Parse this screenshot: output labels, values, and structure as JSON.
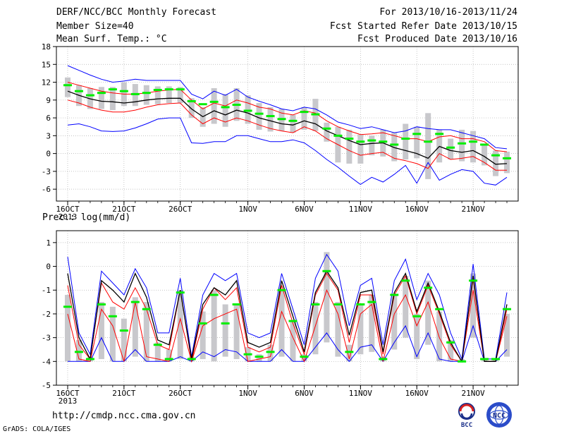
{
  "header": {
    "title": "DERF/NCC/BCC Monthly Forecast",
    "member_size": "Member Size=40",
    "variable": "Mean Surf. Temp.: °C",
    "for_period": "For 2013/10/16-2013/11/24",
    "fcst_started": "Fcst Started Refer Date 2013/10/15",
    "fcst_produced": "Fcst Produced Date 2013/10/16"
  },
  "footer": {
    "url": "http://cmdp.ncc.cma.gov.cn",
    "grads": "GrADS: COLA/IGES",
    "logo_bcc": "BCC",
    "logo_ncc": "NCC"
  },
  "colors": {
    "max_min": "#0000ff",
    "mean": "#000000",
    "std_band": "#ff0000",
    "spread_box": "#c8c8cc",
    "median": "#00ee00"
  },
  "chart_data": [
    {
      "type": "line",
      "title": "",
      "ylabel": "Mean Surf. Temp.: °C",
      "ylim": [
        -8,
        18
      ],
      "yticks": [
        -6,
        -3,
        0,
        3,
        6,
        9,
        12,
        15,
        18
      ],
      "x_tick_labels": [
        {
          "day": 1,
          "label": "16OCT"
        },
        {
          "day": 6,
          "label": "21OCT"
        },
        {
          "day": 11,
          "label": "26OCT"
        },
        {
          "day": 17,
          "label": "1NOV"
        },
        {
          "day": 22,
          "label": "6NOV"
        },
        {
          "day": 27,
          "label": "11NOV"
        },
        {
          "day": 32,
          "label": "16NOV"
        },
        {
          "day": 37,
          "label": "21NOV"
        }
      ],
      "year_label": "2013",
      "days": [
        1,
        2,
        3,
        4,
        5,
        6,
        7,
        8,
        9,
        10,
        11,
        12,
        13,
        14,
        15,
        16,
        17,
        18,
        19,
        20,
        21,
        22,
        23,
        24,
        25,
        26,
        27,
        28,
        29,
        30,
        31,
        32,
        33,
        34,
        35,
        36,
        37,
        38,
        39,
        40
      ],
      "series": [
        {
          "role": "max",
          "values": [
            14.8,
            14.0,
            13.2,
            12.5,
            12.0,
            12.2,
            12.5,
            12.3,
            12.3,
            12.3,
            12.3,
            10.0,
            9.2,
            10.5,
            9.8,
            10.8,
            9.5,
            8.8,
            8.2,
            7.5,
            7.2,
            7.8,
            7.5,
            6.5,
            5.3,
            4.8,
            4.2,
            4.5,
            4.0,
            3.5,
            3.8,
            4.5,
            4.2,
            4.0,
            4.0,
            3.5,
            3.0,
            2.5,
            1.0,
            0.8
          ]
        },
        {
          "role": "std_upper",
          "values": [
            12.0,
            11.5,
            11.0,
            10.5,
            10.2,
            10.0,
            10.0,
            10.2,
            10.5,
            10.7,
            10.8,
            9.0,
            7.5,
            8.5,
            8.0,
            9.0,
            8.5,
            7.8,
            7.5,
            6.8,
            6.5,
            7.2,
            6.8,
            5.5,
            4.5,
            3.8,
            3.2,
            3.3,
            3.5,
            3.0,
            2.5,
            2.5,
            2.0,
            2.8,
            3.0,
            2.5,
            2.5,
            2.0,
            0.5,
            0.3
          ]
        },
        {
          "role": "mean",
          "values": [
            10.5,
            9.8,
            9.2,
            8.8,
            8.7,
            8.5,
            8.7,
            9.0,
            9.2,
            9.3,
            9.3,
            7.5,
            6.2,
            7.2,
            6.5,
            7.3,
            6.8,
            6.0,
            5.5,
            5.0,
            4.8,
            5.5,
            5.0,
            3.8,
            3.0,
            2.2,
            1.5,
            1.7,
            1.8,
            1.0,
            0.5,
            0.0,
            -0.8,
            1.2,
            0.5,
            0.2,
            0.5,
            -0.5,
            -1.8,
            -1.7
          ]
        },
        {
          "role": "std_lower",
          "values": [
            9.0,
            8.5,
            7.8,
            7.3,
            7.0,
            7.0,
            7.3,
            7.8,
            8.2,
            8.4,
            8.5,
            6.5,
            5.0,
            6.0,
            5.3,
            6.0,
            5.5,
            4.8,
            4.2,
            3.8,
            3.5,
            4.5,
            3.8,
            2.5,
            1.5,
            0.5,
            -0.3,
            0.0,
            0.2,
            -0.8,
            -1.2,
            -1.7,
            -2.5,
            0.0,
            -1.0,
            -0.8,
            -0.5,
            -1.5,
            -2.8,
            -2.8
          ]
        },
        {
          "role": "min",
          "values": [
            4.8,
            5.0,
            4.5,
            3.8,
            3.7,
            3.8,
            4.3,
            5.0,
            5.8,
            6.0,
            6.0,
            1.8,
            1.7,
            2.0,
            2.0,
            3.0,
            3.0,
            2.5,
            2.0,
            2.0,
            2.3,
            1.8,
            0.5,
            -1.0,
            -2.3,
            -3.8,
            -5.2,
            -4.0,
            -4.8,
            -3.5,
            -2.0,
            -5.0,
            -1.5,
            -4.5,
            -3.5,
            -2.7,
            -3.0,
            -5.0,
            -5.3,
            -4.0
          ]
        },
        {
          "role": "box_top",
          "values": [
            12.8,
            11.5,
            11.0,
            11.2,
            11.2,
            12.0,
            11.7,
            11.5,
            11.3,
            11.3,
            11.2,
            9.3,
            7.8,
            11.0,
            10.0,
            11.0,
            9.8,
            8.5,
            7.8,
            7.5,
            6.5,
            7.8,
            9.2,
            5.2,
            4.5,
            4.0,
            3.2,
            3.0,
            4.0,
            3.5,
            5.0,
            4.5,
            6.8,
            4.0,
            2.5,
            4.0,
            3.8,
            1.5,
            0.5,
            0.3
          ]
        },
        {
          "role": "box_bottom",
          "values": [
            9.5,
            8.0,
            7.5,
            7.5,
            7.3,
            8.0,
            8.0,
            8.2,
            8.3,
            8.5,
            8.5,
            6.0,
            4.5,
            5.0,
            4.5,
            5.5,
            5.0,
            4.0,
            3.7,
            3.8,
            3.5,
            4.0,
            3.8,
            2.0,
            -1.5,
            -1.7,
            -1.7,
            -0.3,
            -0.5,
            -1.3,
            -1.0,
            -0.8,
            -4.3,
            -1.5,
            -1.0,
            -1.3,
            -1.5,
            -2.0,
            -3.8,
            -3.3
          ]
        },
        {
          "role": "median",
          "values": [
            11.5,
            10.5,
            9.8,
            10.2,
            10.8,
            10.5,
            10.0,
            10.2,
            10.7,
            10.8,
            10.8,
            8.8,
            8.3,
            8.7,
            7.8,
            8.2,
            7.2,
            6.7,
            6.3,
            5.8,
            5.5,
            7.0,
            6.6,
            4.2,
            3.0,
            2.5,
            2.0,
            2.2,
            2.0,
            1.5,
            2.5,
            3.3,
            2.0,
            3.3,
            1.0,
            1.7,
            2.0,
            1.5,
            -0.3,
            -0.8
          ]
        }
      ]
    },
    {
      "type": "line",
      "title": "",
      "ylabel": "Prec.: log(mm/d)",
      "ylim": [
        -5,
        1.5
      ],
      "yticks": [
        -5,
        -4,
        -3,
        -2,
        -1,
        0,
        1
      ],
      "x_tick_labels": [
        {
          "day": 1,
          "label": "16OCT"
        },
        {
          "day": 6,
          "label": "21OCT"
        },
        {
          "day": 11,
          "label": "26OCT"
        },
        {
          "day": 17,
          "label": "1NOV"
        },
        {
          "day": 22,
          "label": "6NOV"
        },
        {
          "day": 27,
          "label": "11NOV"
        },
        {
          "day": 32,
          "label": "16NOV"
        },
        {
          "day": 37,
          "label": "21NOV"
        }
      ],
      "year_label": "2013",
      "days": [
        1,
        2,
        3,
        4,
        5,
        6,
        7,
        8,
        9,
        10,
        11,
        12,
        13,
        14,
        15,
        16,
        17,
        18,
        19,
        20,
        21,
        22,
        23,
        24,
        25,
        26,
        27,
        28,
        29,
        30,
        31,
        32,
        33,
        34,
        35,
        36,
        37,
        38,
        39,
        40
      ],
      "series": [
        {
          "role": "max",
          "values": [
            0.4,
            -2.8,
            -3.7,
            -0.2,
            -0.7,
            -1.2,
            -0.1,
            -0.9,
            -2.8,
            -2.8,
            -0.5,
            -3.8,
            -1.2,
            -0.3,
            -0.6,
            -0.3,
            -2.8,
            -3.0,
            -2.8,
            -0.3,
            -1.8,
            -3.3,
            -0.5,
            0.5,
            -0.2,
            -2.5,
            -0.8,
            -0.5,
            -3.3,
            -0.6,
            0.3,
            -1.4,
            -0.3,
            -1.2,
            -2.8,
            -3.9,
            0.1,
            -3.9,
            -3.9,
            -1.1
          ]
        },
        {
          "role": "std_upper",
          "values": [
            -0.8,
            -3.3,
            -3.9,
            -0.7,
            -1.5,
            -1.8,
            -0.9,
            -1.8,
            -3.3,
            -3.5,
            -1.0,
            -4.0,
            -1.8,
            -0.9,
            -1.4,
            -0.9,
            -3.4,
            -3.6,
            -3.4,
            -0.8,
            -2.4,
            -3.7,
            -1.2,
            -0.3,
            -1.0,
            -3.2,
            -1.2,
            -1.2,
            -3.7,
            -1.2,
            -0.4,
            -2.0,
            -0.8,
            -2.0,
            -3.3,
            -4.0,
            -0.5,
            -4.0,
            -4.0,
            -1.8
          ]
        },
        {
          "role": "mean",
          "values": [
            -0.3,
            -3.0,
            -3.9,
            -0.6,
            -1.0,
            -1.5,
            -0.3,
            -1.3,
            -3.1,
            -3.3,
            -1.0,
            -3.9,
            -1.6,
            -0.9,
            -1.2,
            -0.6,
            -3.2,
            -3.4,
            -3.2,
            -0.6,
            -2.1,
            -3.6,
            -1.1,
            -0.2,
            -0.9,
            -2.9,
            -1.1,
            -1.0,
            -3.6,
            -1.1,
            -0.3,
            -1.9,
            -0.7,
            -1.9,
            -3.2,
            -4.0,
            -0.4,
            -4.0,
            -4.0,
            -1.6
          ]
        },
        {
          "role": "std_lower",
          "values": [
            -2.0,
            -3.9,
            -4.0,
            -1.8,
            -2.5,
            -4.0,
            -1.5,
            -3.8,
            -3.9,
            -4.0,
            -2.2,
            -4.0,
            -2.5,
            -2.2,
            -2.0,
            -1.8,
            -4.0,
            -3.9,
            -3.8,
            -1.9,
            -3.0,
            -4.0,
            -2.5,
            -1.0,
            -2.0,
            -3.9,
            -2.0,
            -1.6,
            -4.0,
            -2.0,
            -1.2,
            -2.5,
            -1.5,
            -3.0,
            -3.9,
            -4.0,
            -1.0,
            -4.0,
            -4.0,
            -2.1
          ]
        },
        {
          "role": "min",
          "values": [
            -4.0,
            -4.0,
            -4.0,
            -3.0,
            -4.0,
            -4.0,
            -3.5,
            -4.0,
            -4.0,
            -4.0,
            -3.8,
            -4.0,
            -3.6,
            -3.8,
            -3.5,
            -3.6,
            -4.0,
            -4.0,
            -4.0,
            -3.5,
            -4.0,
            -4.0,
            -3.4,
            -2.8,
            -3.5,
            -4.0,
            -3.4,
            -3.3,
            -4.0,
            -3.2,
            -2.5,
            -3.8,
            -2.8,
            -3.9,
            -4.0,
            -4.0,
            -2.5,
            -4.0,
            -4.0,
            -3.5
          ]
        },
        {
          "role": "box_top",
          "values": [
            -1.2,
            -3.1,
            -3.8,
            -1.5,
            -1.7,
            -2.2,
            -1.3,
            -1.5,
            -3.2,
            -3.5,
            -1.0,
            -3.8,
            -1.9,
            -1.0,
            -1.6,
            -1.6,
            -3.4,
            -3.7,
            -3.3,
            -1.0,
            -2.3,
            -3.7,
            -1.5,
            0.6,
            -1.5,
            -3.3,
            -1.6,
            -1.2,
            -3.8,
            -1.2,
            -0.4,
            -2.0,
            -0.6,
            -1.9,
            -3.1,
            -3.9,
            -0.3,
            -3.9,
            -3.9,
            -2.0
          ]
        },
        {
          "role": "box_bottom",
          "values": [
            -4.0,
            -4.0,
            -4.0,
            -3.9,
            -4.0,
            -4.0,
            -3.8,
            -4.0,
            -4.0,
            -4.0,
            -3.9,
            -4.0,
            -3.9,
            -4.0,
            -3.8,
            -3.9,
            -4.0,
            -4.0,
            -4.0,
            -3.8,
            -4.0,
            -4.0,
            -3.7,
            -3.2,
            -3.8,
            -4.0,
            -3.7,
            -3.6,
            -4.0,
            -3.5,
            -3.0,
            -3.9,
            -3.3,
            -4.0,
            -4.0,
            -4.0,
            -3.0,
            -4.0,
            -4.0,
            -3.8
          ]
        },
        {
          "role": "median",
          "values": [
            -1.7,
            -3.6,
            -3.9,
            -1.6,
            -2.1,
            -2.7,
            -1.5,
            -1.8,
            -3.3,
            -3.9,
            -1.1,
            -3.9,
            -2.4,
            -1.2,
            -2.4,
            -1.6,
            -3.7,
            -3.8,
            -3.6,
            -1.0,
            -2.3,
            -3.8,
            -1.6,
            -0.2,
            -1.6,
            -3.6,
            -1.6,
            -1.5,
            -3.9,
            -1.2,
            -0.6,
            -2.1,
            -0.9,
            -1.8,
            -3.2,
            -4.0,
            -0.6,
            -3.9,
            -3.9,
            -1.8
          ]
        }
      ]
    }
  ]
}
